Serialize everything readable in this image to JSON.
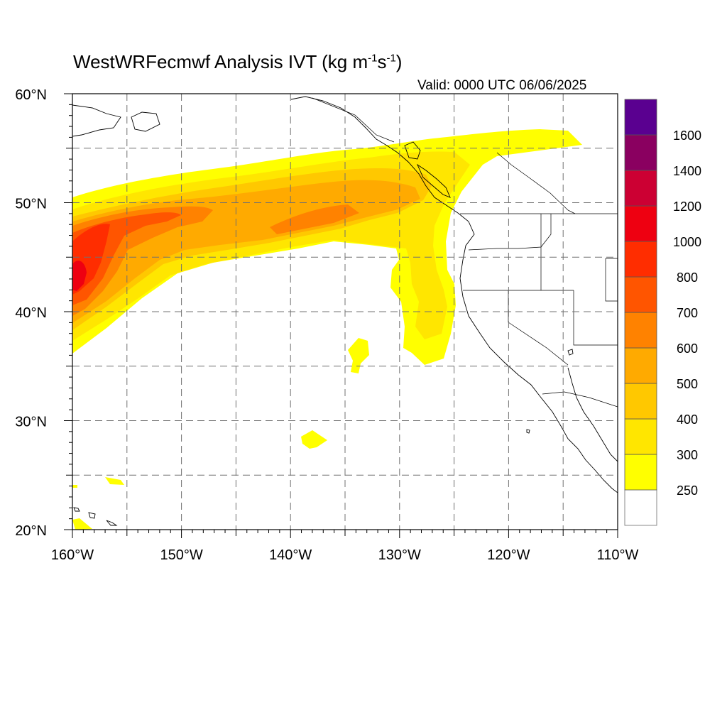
{
  "title": {
    "prefix": "WestWRFecmwf Analysis IVT (kg m",
    "exp1": "-1",
    "mid": "s",
    "exp2": "-1",
    "suffix": ")"
  },
  "valid_label": "Valid: 0000 UTC 06/06/2025",
  "axes": {
    "lat_ticks": [
      {
        "value": 60,
        "label": "60°N"
      },
      {
        "value": 50,
        "label": "50°N"
      },
      {
        "value": 40,
        "label": "40°N"
      },
      {
        "value": 30,
        "label": "30°N"
      },
      {
        "value": 20,
        "label": "20°N"
      }
    ],
    "lon_ticks": [
      {
        "value": -160,
        "label": "160°W"
      },
      {
        "value": -150,
        "label": "150°W"
      },
      {
        "value": -140,
        "label": "140°W"
      },
      {
        "value": -130,
        "label": "130°W"
      },
      {
        "value": -120,
        "label": "120°W"
      },
      {
        "value": -110,
        "label": "110°W"
      }
    ],
    "lon_range": [
      -160,
      -110
    ],
    "lat_range": [
      20,
      60
    ],
    "grid": "dashed every 5 degrees"
  },
  "colorbar": {
    "levels": [
      {
        "label": "250",
        "color": "#ffff00"
      },
      {
        "label": "300",
        "color": "#ffe600"
      },
      {
        "label": "400",
        "color": "#ffc800"
      },
      {
        "label": "500",
        "color": "#ffaa00"
      },
      {
        "label": "600",
        "color": "#ff8200"
      },
      {
        "label": "700",
        "color": "#ff5500"
      },
      {
        "label": "800",
        "color": "#ff2d00"
      },
      {
        "label": "1000",
        "color": "#ee0011"
      },
      {
        "label": "1200",
        "color": "#cc0033"
      },
      {
        "label": "1400",
        "color": "#8a0060"
      },
      {
        "label": "1600",
        "color": "#5a0090"
      }
    ],
    "below_color": "#ffffff"
  }
}
